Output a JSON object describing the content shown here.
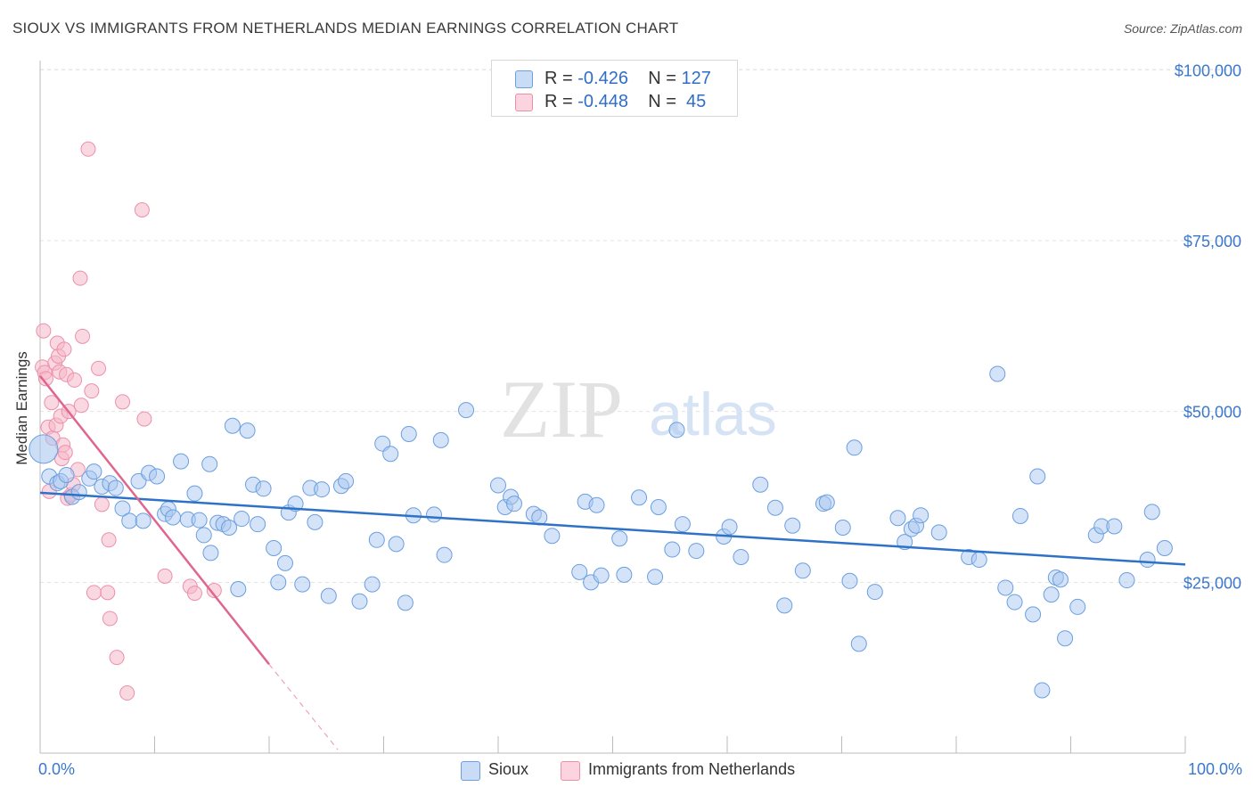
{
  "title": "SIOUX VS IMMIGRANTS FROM NETHERLANDS MEDIAN EARNINGS CORRELATION CHART",
  "source": "Source: ZipAtlas.com",
  "watermark": {
    "zip": "ZIP",
    "atlas": "atlas"
  },
  "legend_top": [
    {
      "r_label": "R = ",
      "r_value": "-0.426",
      "n_label": "N = ",
      "n_value": "127",
      "color": "#a9c8f0"
    },
    {
      "r_label": "R = ",
      "r_value": "-0.448",
      "n_label": "N = ",
      "n_value": " 45",
      "color": "#f6b8c9"
    }
  ],
  "legend_bottom": [
    {
      "label": "Sioux",
      "color": "#a9c8f0"
    },
    {
      "label": "Immigrants from Netherlands",
      "color": "#f6b8c9"
    }
  ],
  "chart_data": {
    "type": "scatter",
    "title": "SIOUX VS IMMIGRANTS FROM NETHERLANDS MEDIAN EARNINGS CORRELATION CHART",
    "ylabel": "Median Earnings",
    "xlabel": "",
    "xlim": [
      0,
      100
    ],
    "ylim": [
      0,
      105000
    ],
    "x_tick_labels": [
      "0.0%",
      "100.0%"
    ],
    "y_ticks": [
      25000,
      50000,
      75000,
      100000
    ],
    "y_tick_labels": [
      "$25,000",
      "$50,000",
      "$75,000",
      "$100,000"
    ],
    "grid": true,
    "colors": {
      "sioux_fill": "#a9c8f0",
      "sioux_stroke": "#6a9fe0",
      "sioux_line": "#2e72c8",
      "neth_fill": "#f6b8c9",
      "neth_stroke": "#ec8fab",
      "neth_line": "#e0668f",
      "tick_label": "#3a78cc"
    },
    "series": [
      {
        "name": "Sioux",
        "trend": {
          "x0": 0,
          "y0": 38100,
          "x1": 100,
          "y1": 27600
        },
        "points": [
          [
            0.3,
            44500
          ],
          [
            0.8,
            40500
          ],
          [
            1.5,
            39500
          ],
          [
            1.8,
            39800
          ],
          [
            2.3,
            40700
          ],
          [
            2.8,
            37500
          ],
          [
            3.4,
            38200
          ],
          [
            4.3,
            40200
          ],
          [
            4.7,
            41200
          ],
          [
            5.4,
            39000
          ],
          [
            6.1,
            39500
          ],
          [
            6.6,
            38800
          ],
          [
            7.2,
            35800
          ],
          [
            7.8,
            34000
          ],
          [
            8.6,
            39800
          ],
          [
            9.0,
            34000
          ],
          [
            9.5,
            41000
          ],
          [
            10.2,
            40500
          ],
          [
            10.9,
            35000
          ],
          [
            11.2,
            35700
          ],
          [
            11.6,
            34500
          ],
          [
            12.3,
            42700
          ],
          [
            12.9,
            34200
          ],
          [
            13.5,
            38000
          ],
          [
            13.9,
            34100
          ],
          [
            14.3,
            31900
          ],
          [
            14.8,
            42300
          ],
          [
            14.9,
            29300
          ],
          [
            15.5,
            33700
          ],
          [
            16.0,
            33500
          ],
          [
            16.5,
            33000
          ],
          [
            16.8,
            47900
          ],
          [
            17.3,
            24000
          ],
          [
            17.6,
            34300
          ],
          [
            18.1,
            47200
          ],
          [
            18.6,
            39300
          ],
          [
            19.0,
            33500
          ],
          [
            19.5,
            38700
          ],
          [
            20.4,
            30000
          ],
          [
            20.8,
            25000
          ],
          [
            21.4,
            27800
          ],
          [
            21.7,
            35200
          ],
          [
            22.3,
            36500
          ],
          [
            22.9,
            24700
          ],
          [
            23.6,
            38800
          ],
          [
            24.0,
            33800
          ],
          [
            24.6,
            38600
          ],
          [
            25.2,
            23000
          ],
          [
            26.3,
            39100
          ],
          [
            26.7,
            39800
          ],
          [
            27.9,
            22200
          ],
          [
            29.0,
            24700
          ],
          [
            29.4,
            31200
          ],
          [
            29.9,
            45300
          ],
          [
            30.6,
            43800
          ],
          [
            31.1,
            30600
          ],
          [
            31.9,
            22000
          ],
          [
            32.2,
            46700
          ],
          [
            32.6,
            34800
          ],
          [
            34.4,
            34900
          ],
          [
            35.0,
            45800
          ],
          [
            35.3,
            29000
          ],
          [
            37.2,
            50200
          ],
          [
            40.0,
            39200
          ],
          [
            40.6,
            36000
          ],
          [
            41.1,
            37500
          ],
          [
            41.4,
            36500
          ],
          [
            43.1,
            35000
          ],
          [
            43.6,
            34500
          ],
          [
            44.7,
            31800
          ],
          [
            47.1,
            26500
          ],
          [
            47.6,
            36800
          ],
          [
            48.1,
            25000
          ],
          [
            48.6,
            36300
          ],
          [
            49.0,
            26000
          ],
          [
            50.6,
            31400
          ],
          [
            51.0,
            26100
          ],
          [
            52.3,
            37400
          ],
          [
            53.7,
            25800
          ],
          [
            54.0,
            36000
          ],
          [
            55.2,
            29800
          ],
          [
            55.6,
            47300
          ],
          [
            56.1,
            33500
          ],
          [
            57.3,
            29600
          ],
          [
            59.7,
            31700
          ],
          [
            60.2,
            33100
          ],
          [
            61.2,
            28700
          ],
          [
            62.9,
            39300
          ],
          [
            64.2,
            35900
          ],
          [
            65.0,
            21600
          ],
          [
            65.7,
            33300
          ],
          [
            66.6,
            26700
          ],
          [
            68.4,
            36500
          ],
          [
            68.7,
            36700
          ],
          [
            70.1,
            33000
          ],
          [
            70.7,
            25200
          ],
          [
            71.1,
            44700
          ],
          [
            71.5,
            16000
          ],
          [
            72.9,
            23600
          ],
          [
            74.9,
            34400
          ],
          [
            75.5,
            30900
          ],
          [
            76.1,
            32800
          ],
          [
            76.5,
            33300
          ],
          [
            76.9,
            34800
          ],
          [
            78.5,
            32300
          ],
          [
            81.1,
            28700
          ],
          [
            82.0,
            28300
          ],
          [
            83.6,
            55500
          ],
          [
            84.3,
            24200
          ],
          [
            85.1,
            22100
          ],
          [
            85.6,
            34700
          ],
          [
            86.7,
            20300
          ],
          [
            87.1,
            40500
          ],
          [
            87.5,
            9200
          ],
          [
            88.3,
            23200
          ],
          [
            88.7,
            25700
          ],
          [
            89.1,
            25400
          ],
          [
            89.5,
            16800
          ],
          [
            90.6,
            21400
          ],
          [
            92.2,
            31900
          ],
          [
            92.7,
            33200
          ],
          [
            93.8,
            33200
          ],
          [
            94.9,
            25300
          ],
          [
            96.7,
            28300
          ],
          [
            97.1,
            35300
          ],
          [
            98.2,
            30000
          ]
        ]
      },
      {
        "name": "Immigrants from Netherlands",
        "trend": {
          "x0": 0,
          "y0": 55200,
          "x1": 20,
          "y1": 13000,
          "dash_x1": 26,
          "dash_y1": 500
        },
        "points": [
          [
            0.2,
            56500
          ],
          [
            0.3,
            61800
          ],
          [
            0.4,
            55700
          ],
          [
            0.5,
            54800
          ],
          [
            0.7,
            47700
          ],
          [
            0.8,
            38300
          ],
          [
            1.0,
            51300
          ],
          [
            1.1,
            46100
          ],
          [
            1.3,
            57100
          ],
          [
            1.4,
            48000
          ],
          [
            1.5,
            60000
          ],
          [
            1.6,
            58100
          ],
          [
            1.7,
            55800
          ],
          [
            1.8,
            49300
          ],
          [
            1.9,
            43100
          ],
          [
            2.0,
            45100
          ],
          [
            2.1,
            59100
          ],
          [
            2.2,
            44000
          ],
          [
            2.3,
            55400
          ],
          [
            2.4,
            37300
          ],
          [
            2.5,
            50000
          ],
          [
            2.7,
            37800
          ],
          [
            2.9,
            39300
          ],
          [
            3.0,
            54600
          ],
          [
            3.3,
            41500
          ],
          [
            3.5,
            69500
          ],
          [
            3.6,
            50900
          ],
          [
            3.7,
            61000
          ],
          [
            4.2,
            88400
          ],
          [
            4.5,
            53000
          ],
          [
            4.7,
            23500
          ],
          [
            5.1,
            56300
          ],
          [
            5.4,
            36400
          ],
          [
            5.9,
            23500
          ],
          [
            6.0,
            31200
          ],
          [
            6.1,
            19700
          ],
          [
            6.7,
            14000
          ],
          [
            7.2,
            51400
          ],
          [
            7.6,
            8800
          ],
          [
            8.9,
            79500
          ],
          [
            9.1,
            48900
          ],
          [
            10.9,
            25900
          ],
          [
            13.1,
            24400
          ],
          [
            13.5,
            23400
          ],
          [
            15.2,
            23800
          ]
        ]
      }
    ]
  }
}
